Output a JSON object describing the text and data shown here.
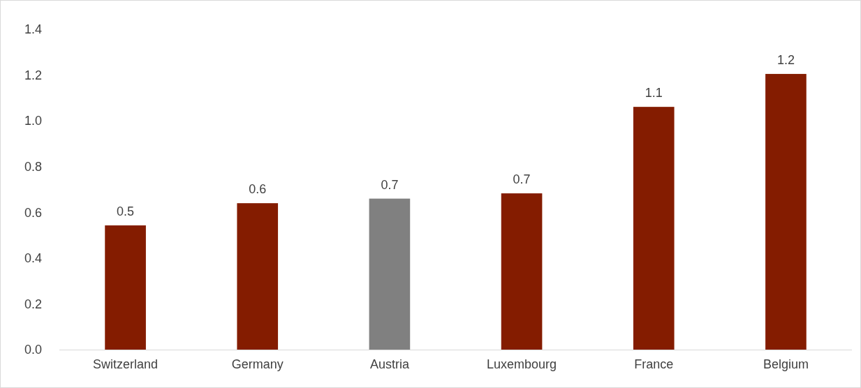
{
  "chart_data": {
    "type": "bar",
    "categories": [
      "Switzerland",
      "Germany",
      "Austria",
      "Luxembourg",
      "France",
      "Belgium"
    ],
    "values": [
      0.543,
      0.64,
      0.66,
      0.683,
      1.061,
      1.205
    ],
    "colors": [
      "#841c00",
      "#841c00",
      "#808080",
      "#841c00",
      "#841c00",
      "#841c00"
    ],
    "value_labels": [
      "0.5",
      "0.6",
      "0.7",
      "0.7",
      "1.1",
      "1.2"
    ],
    "ylim": [
      0,
      1.4
    ],
    "yticks": [
      {
        "value": 0,
        "label": "0.0"
      },
      {
        "value": 0.2,
        "label": "0.2"
      },
      {
        "value": 0.4,
        "label": "0.4"
      },
      {
        "value": 0.6,
        "label": "0.6"
      },
      {
        "value": 0.8,
        "label": "0.8"
      },
      {
        "value": 1,
        "label": "1.0"
      },
      {
        "value": 1.2,
        "label": "1.2"
      },
      {
        "value": 1.4,
        "label": "1.4"
      }
    ],
    "grid": false,
    "legend": false
  }
}
